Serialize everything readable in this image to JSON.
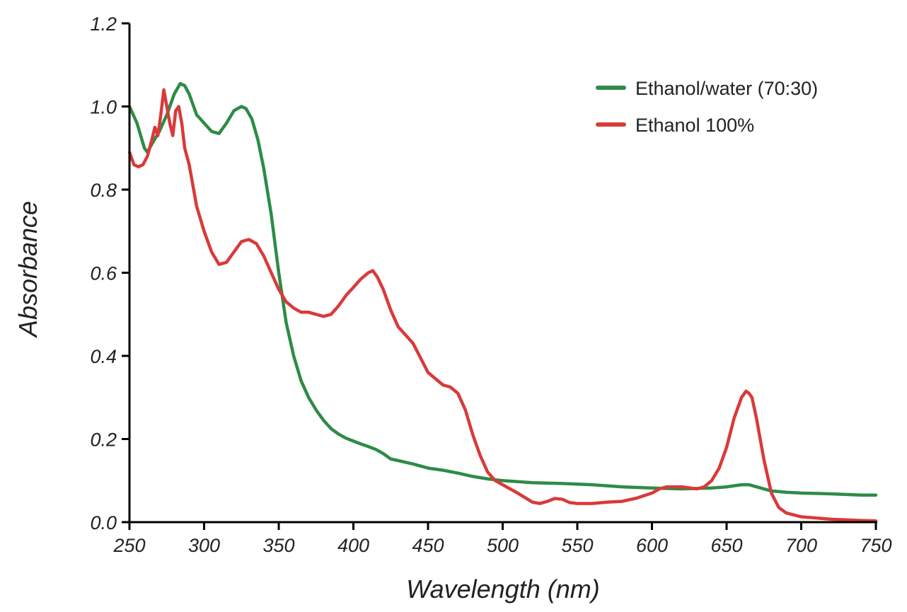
{
  "chart_data": {
    "type": "line",
    "title": "",
    "xlabel": "Wavelength (nm)",
    "ylabel": "Absorbance",
    "xlim": [
      250,
      750
    ],
    "ylim": [
      0.0,
      1.2
    ],
    "xticks": [
      250,
      300,
      350,
      400,
      450,
      500,
      550,
      600,
      650,
      700,
      750
    ],
    "yticks": [
      0.0,
      0.2,
      0.4,
      0.6,
      0.8,
      1.0,
      1.2
    ],
    "xtick_labels": [
      "250",
      "300",
      "350",
      "400",
      "450",
      "500",
      "550",
      "600",
      "650",
      "700",
      "750"
    ],
    "ytick_labels": [
      "0.0",
      "0.2",
      "0.4",
      "0.6",
      "0.8",
      "1.0",
      "1.2"
    ],
    "grid": false,
    "legend_position": "top-right",
    "series": [
      {
        "name": "Ethanol/water (70:30)",
        "color": "#2e8b47",
        "x": [
          250,
          255,
          260,
          262,
          265,
          270,
          275,
          280,
          284,
          287,
          290,
          295,
          300,
          305,
          310,
          315,
          320,
          325,
          328,
          332,
          336,
          340,
          345,
          350,
          355,
          360,
          365,
          370,
          375,
          380,
          385,
          390,
          395,
          400,
          405,
          410,
          415,
          420,
          425,
          430,
          440,
          450,
          460,
          470,
          480,
          490,
          500,
          520,
          540,
          560,
          580,
          600,
          620,
          640,
          650,
          660,
          665,
          670,
          680,
          690,
          700,
          720,
          740,
          750
        ],
        "y": [
          1.0,
          0.96,
          0.9,
          0.89,
          0.91,
          0.94,
          0.98,
          1.03,
          1.055,
          1.05,
          1.03,
          0.98,
          0.96,
          0.94,
          0.935,
          0.96,
          0.99,
          1.0,
          0.995,
          0.97,
          0.92,
          0.85,
          0.74,
          0.6,
          0.48,
          0.4,
          0.34,
          0.3,
          0.27,
          0.245,
          0.225,
          0.212,
          0.202,
          0.195,
          0.188,
          0.182,
          0.175,
          0.165,
          0.152,
          0.148,
          0.14,
          0.13,
          0.125,
          0.118,
          0.11,
          0.104,
          0.1,
          0.095,
          0.093,
          0.09,
          0.085,
          0.082,
          0.08,
          0.082,
          0.085,
          0.09,
          0.09,
          0.085,
          0.075,
          0.072,
          0.07,
          0.068,
          0.065,
          0.065
        ]
      },
      {
        "name": "Ethanol 100%",
        "color": "#d93a3a",
        "x": [
          250,
          253,
          256,
          259,
          262,
          265,
          267,
          269,
          271,
          273,
          275,
          277,
          279,
          281,
          283,
          285,
          287,
          290,
          295,
          300,
          305,
          310,
          315,
          320,
          325,
          330,
          335,
          340,
          345,
          350,
          355,
          360,
          365,
          370,
          375,
          380,
          385,
          390,
          395,
          400,
          405,
          410,
          413,
          416,
          420,
          425,
          430,
          440,
          450,
          460,
          465,
          470,
          475,
          480,
          485,
          490,
          495,
          500,
          510,
          520,
          525,
          530,
          535,
          540,
          545,
          550,
          560,
          570,
          580,
          590,
          600,
          605,
          610,
          620,
          630,
          635,
          640,
          645,
          650,
          655,
          660,
          663,
          665,
          667,
          670,
          675,
          680,
          685,
          690,
          700,
          720,
          740,
          750
        ],
        "y": [
          0.89,
          0.86,
          0.855,
          0.86,
          0.88,
          0.92,
          0.95,
          0.93,
          0.98,
          1.04,
          1.0,
          0.96,
          0.93,
          0.99,
          1.0,
          0.96,
          0.9,
          0.86,
          0.76,
          0.7,
          0.65,
          0.62,
          0.625,
          0.65,
          0.675,
          0.68,
          0.67,
          0.64,
          0.6,
          0.56,
          0.53,
          0.515,
          0.505,
          0.505,
          0.5,
          0.495,
          0.5,
          0.52,
          0.545,
          0.565,
          0.585,
          0.6,
          0.605,
          0.59,
          0.56,
          0.51,
          0.47,
          0.43,
          0.36,
          0.33,
          0.325,
          0.31,
          0.27,
          0.21,
          0.16,
          0.12,
          0.1,
          0.09,
          0.07,
          0.048,
          0.045,
          0.05,
          0.057,
          0.055,
          0.047,
          0.045,
          0.045,
          0.048,
          0.05,
          0.058,
          0.07,
          0.08,
          0.085,
          0.085,
          0.08,
          0.085,
          0.1,
          0.13,
          0.18,
          0.25,
          0.3,
          0.315,
          0.31,
          0.3,
          0.25,
          0.15,
          0.07,
          0.035,
          0.022,
          0.013,
          0.007,
          0.004,
          0.003
        ]
      }
    ]
  }
}
